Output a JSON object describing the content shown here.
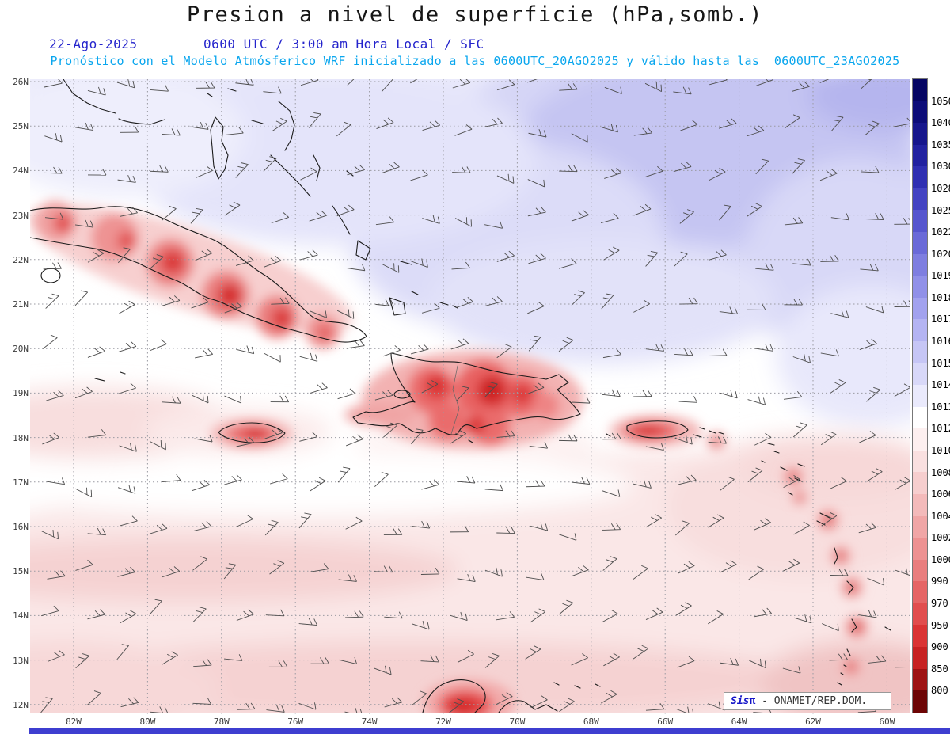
{
  "header": {
    "title": "Presion a nivel de superficie (hPa,somb.)",
    "date": "22-Ago-2025",
    "time": "0600 UTC / 3:00 am Hora Local / SFC",
    "forecast": "Pronóstico con el Modelo Atmósferico WRF inicializado a las 0600UTC_20AGO2025 y válido hasta las  0600UTC_23AGO2025"
  },
  "map": {
    "lat_labels": [
      "26N",
      "25N",
      "24N",
      "23N",
      "22N",
      "21N",
      "20N",
      "19N",
      "18N",
      "17N",
      "16N",
      "15N",
      "14N",
      "13N",
      "12N"
    ],
    "lon_labels": [
      "82W",
      "80W",
      "78W",
      "76W",
      "74W",
      "72W",
      "70W",
      "68W",
      "66W",
      "64W",
      "62W",
      "60W"
    ]
  },
  "colorbar": {
    "unit": "hPa",
    "boundary_labels": [
      "1050",
      "1040",
      "1035",
      "1030",
      "1028",
      "1025",
      "1022",
      "1020",
      "1019",
      "1018",
      "1017",
      "1016",
      "1015",
      "1014",
      "1013",
      "1012",
      "1010",
      "1008",
      "1006",
      "1004",
      "1002",
      "1000",
      "990",
      "970",
      "950",
      "900",
      "850",
      "800"
    ],
    "cell_colors": [
      "#050563",
      "#0c0c78",
      "#16168c",
      "#2222a0",
      "#3030b2",
      "#4444c2",
      "#5656ce",
      "#6a6ad8",
      "#7e7ee0",
      "#9090e8",
      "#a2a2ee",
      "#b4b4f2",
      "#c6c6f5",
      "#d8d8f8",
      "#eaeafc",
      "#ffffff",
      "#fdf0f0",
      "#f9e0e0",
      "#f6cece",
      "#f3baba",
      "#f0a6a6",
      "#ed9292",
      "#e97e7e",
      "#e56666",
      "#e14e4e",
      "#da3535",
      "#c72323",
      "#9e1313",
      "#6d0505"
    ]
  },
  "watermark": {
    "brand": "Sis",
    "pi": "π",
    "text": " - ONAMET/REP.DOM."
  },
  "colors": {
    "title_text": "#161616",
    "subtitle_blue": "#2424cc",
    "subtitle_cyan": "#09a6ee",
    "high_pressure_shade": "#c5c5f2",
    "low_pressure_shade": "#d62a2a",
    "bottom_bar": "#3e3ed0"
  }
}
